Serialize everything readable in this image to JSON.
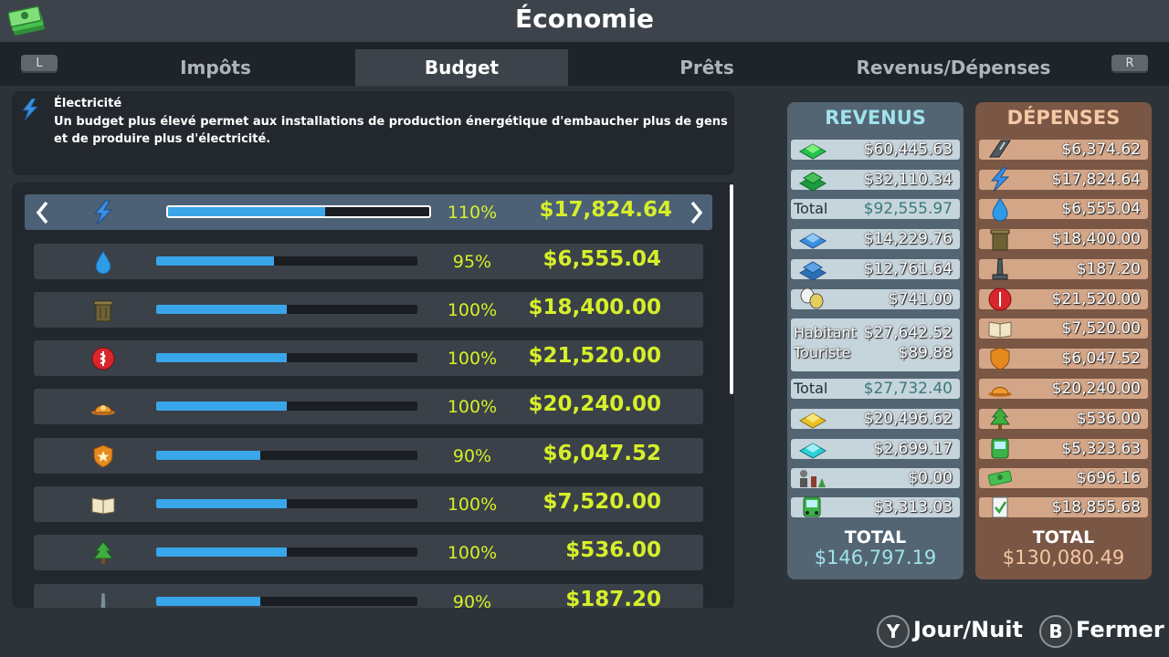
{
  "window": {
    "title": "Économie",
    "logo_icon": "money-stack-icon"
  },
  "shoulders": {
    "left": "L",
    "right": "R"
  },
  "tabs": [
    {
      "label": "Impôts"
    },
    {
      "label": "Budget",
      "active": true
    },
    {
      "label": "Prêts"
    },
    {
      "label": "Revenus/Dépenses"
    }
  ],
  "info": {
    "icon": "lightning-icon",
    "title": "Électricité",
    "description": "Un budget plus élevé permet aux installations de production énergétique d'embaucher plus de gens et de produire plus d'électricité."
  },
  "budget_rows": [
    {
      "icon": "lightning-icon",
      "fill": 0.6,
      "percent": "110%",
      "amount": "$17,824.64",
      "selected": true
    },
    {
      "icon": "water-drop-icon",
      "fill": 0.45,
      "percent": "95%",
      "amount": "$6,555.04"
    },
    {
      "icon": "trash-can-icon",
      "fill": 0.5,
      "percent": "100%",
      "amount": "$18,400.00"
    },
    {
      "icon": "health-icon",
      "fill": 0.5,
      "percent": "100%",
      "amount": "$21,520.00"
    },
    {
      "icon": "fire-helmet-icon",
      "fill": 0.5,
      "percent": "100%",
      "amount": "$20,240.00"
    },
    {
      "icon": "police-badge-icon",
      "fill": 0.4,
      "percent": "90%",
      "amount": "$6,047.52"
    },
    {
      "icon": "education-book-icon",
      "fill": 0.5,
      "percent": "100%",
      "amount": "$7,520.00"
    },
    {
      "icon": "park-tree-icon",
      "fill": 0.5,
      "percent": "100%",
      "amount": "$536.00"
    },
    {
      "icon": "monument-icon",
      "fill": 0.4,
      "percent": "90%",
      "amount": "$187.20"
    }
  ],
  "revenus": {
    "title": "REVENUS",
    "lines": [
      {
        "icon": "residential-low-icon",
        "value": "$60,445.63"
      },
      {
        "icon": "residential-high-icon",
        "value": "$32,110.34"
      },
      {
        "label": "Total",
        "value": "$92,555.97",
        "total": true
      },
      {
        "icon": "commercial-low-icon",
        "value": "$14,229.76"
      },
      {
        "icon": "commercial-high-icon",
        "value": "$12,761.64"
      },
      {
        "icon": "leisure-icon",
        "value": "$741.00"
      },
      {
        "label": "Habitant",
        "value": "$27,642.52",
        "label2": "Touriste",
        "value2": "$89.88",
        "tall": true
      },
      {
        "label": "Total",
        "value": "$27,732.40",
        "total": true
      },
      {
        "icon": "industrial-icon",
        "value": "$20,496.62"
      },
      {
        "icon": "office-icon",
        "value": "$2,699.17"
      },
      {
        "icon": "specialized-industry-icon",
        "value": "$0.00"
      },
      {
        "icon": "bus-icon",
        "value": "$3,313.03"
      }
    ],
    "total_label": "TOTAL",
    "total_value": "$146,797.19"
  },
  "depenses": {
    "title": "DÉPENSES",
    "lines": [
      {
        "icon": "road-icon",
        "value": "$6,374.62"
      },
      {
        "icon": "lightning-icon",
        "value": "$17,824.64"
      },
      {
        "icon": "water-drop-icon",
        "value": "$6,555.04"
      },
      {
        "icon": "trash-can-icon",
        "value": "$18,400.00"
      },
      {
        "icon": "monument-icon",
        "value": "$187.20"
      },
      {
        "icon": "health-icon",
        "value": "$21,520.00"
      },
      {
        "icon": "education-book-icon",
        "value": "$7,520.00"
      },
      {
        "icon": "police-badge-icon",
        "value": "$6,047.52"
      },
      {
        "icon": "fire-helmet-icon",
        "value": "$20,240.00"
      },
      {
        "icon": "park-tree-icon",
        "value": "$536.00"
      },
      {
        "icon": "bus-icon",
        "value": "$5,323.63"
      },
      {
        "icon": "money-stack-icon",
        "value": "$696.16"
      },
      {
        "icon": "policy-check-icon",
        "value": "$18,855.68"
      }
    ],
    "total_label": "TOTAL",
    "total_value": "$130,080.49"
  },
  "hints": [
    {
      "button": "Y",
      "label": "Jour/Nuit"
    },
    {
      "button": "B",
      "label": "Fermer"
    }
  ]
}
